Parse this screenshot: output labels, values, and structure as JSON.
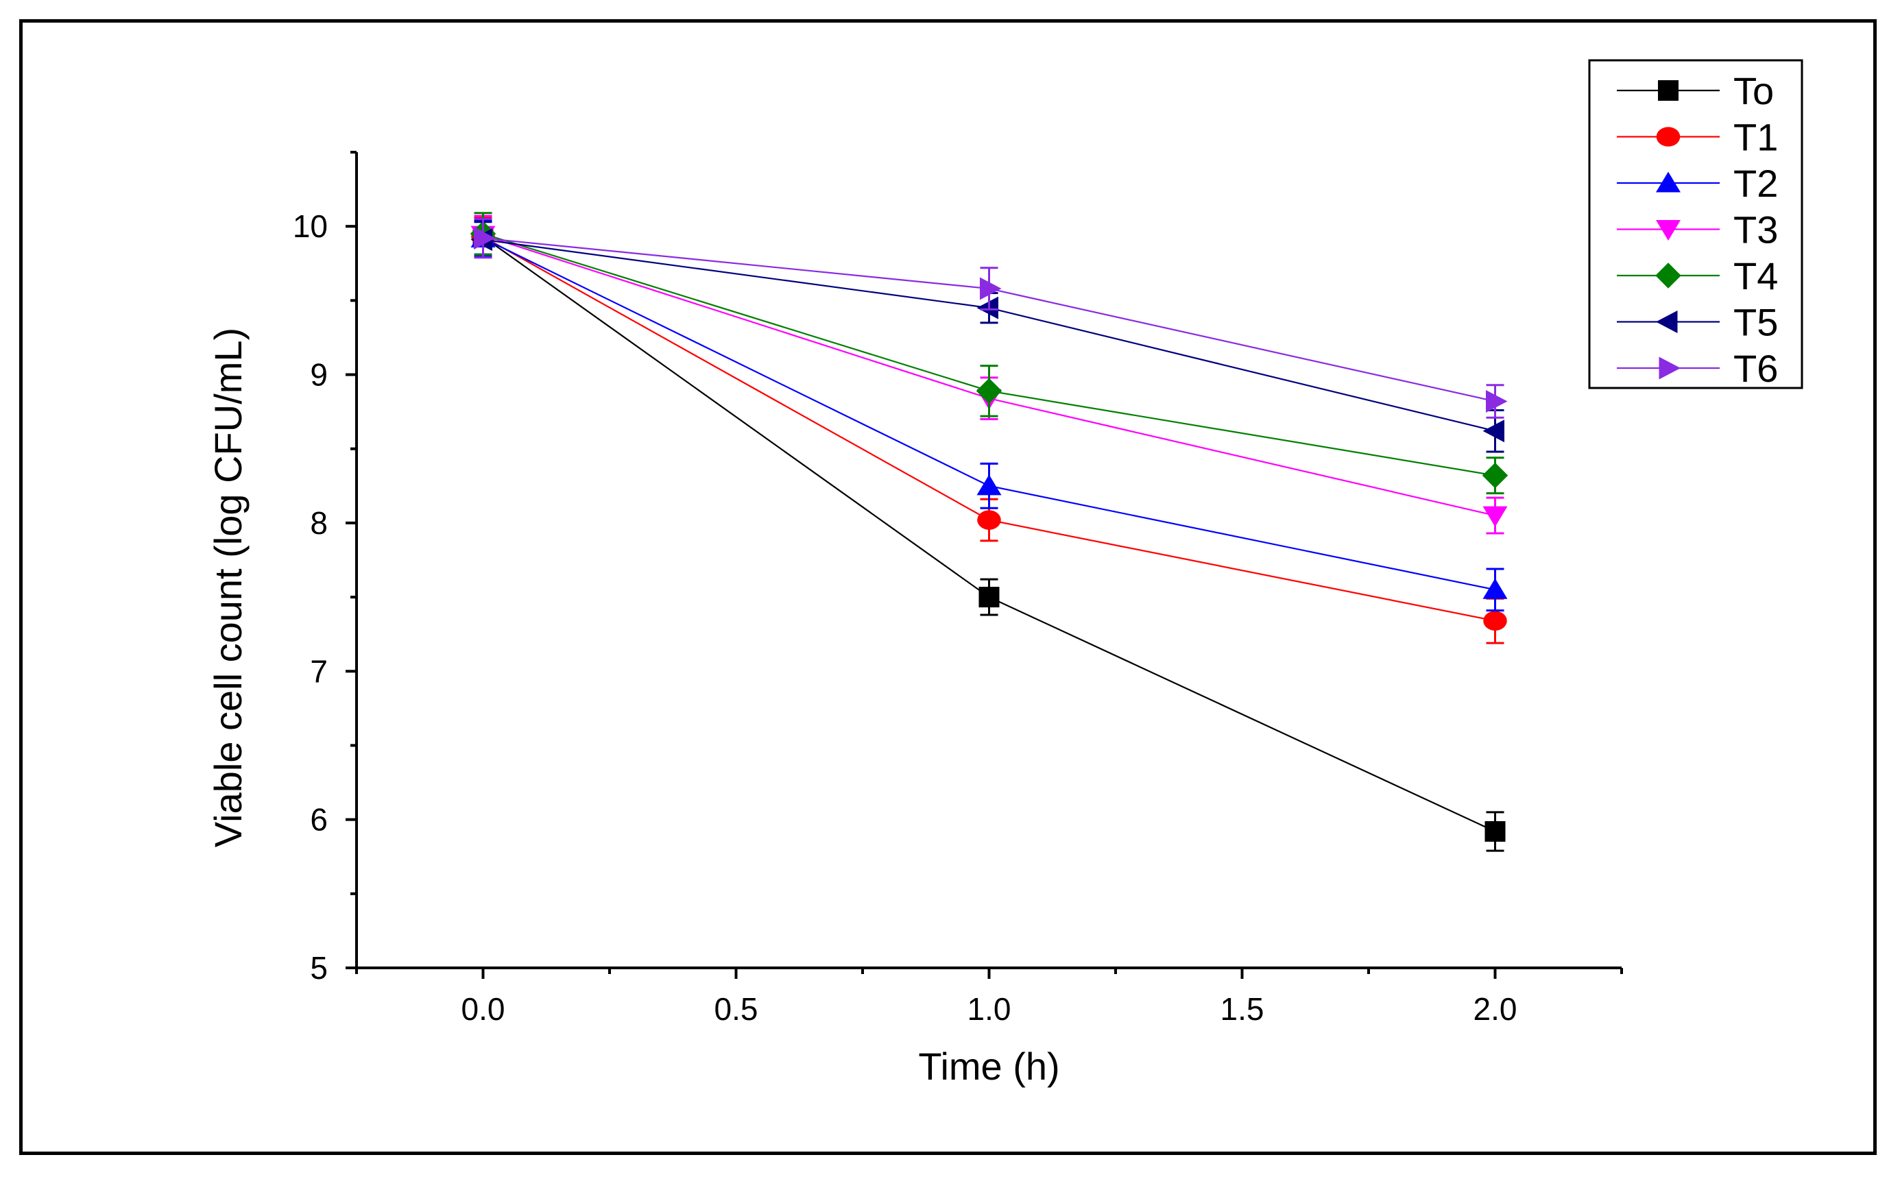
{
  "chart_data": {
    "type": "line",
    "title": "",
    "xlabel": "Time (h)",
    "ylabel": "Viable cell count (log CFU/mL)",
    "xlim": [
      -0.25,
      2.25
    ],
    "ylim": [
      5,
      10.5
    ],
    "xticks": [
      0.0,
      0.5,
      1.0,
      1.5,
      2.0
    ],
    "xtick_labels": [
      "0.0",
      "0.5",
      "1.0",
      "1.5",
      "2.0"
    ],
    "yticks": [
      5,
      6,
      7,
      8,
      9,
      10
    ],
    "ytick_labels": [
      "5",
      "6",
      "7",
      "8",
      "9",
      "10"
    ],
    "legend_position": "top-right",
    "series": [
      {
        "name": "To",
        "color": "#000000",
        "marker": "square",
        "x": [
          0,
          1,
          2
        ],
        "y": [
          9.93,
          7.5,
          5.92
        ],
        "err": [
          0.12,
          0.12,
          0.13
        ]
      },
      {
        "name": "T1",
        "color": "#ff0000",
        "marker": "circle",
        "x": [
          0,
          1,
          2
        ],
        "y": [
          9.93,
          8.02,
          7.34
        ],
        "err": [
          0.13,
          0.14,
          0.15
        ]
      },
      {
        "name": "T2",
        "color": "#0000ff",
        "marker": "triangle-up",
        "x": [
          0,
          1,
          2
        ],
        "y": [
          9.92,
          8.25,
          7.55
        ],
        "err": [
          0.12,
          0.15,
          0.14
        ]
      },
      {
        "name": "T3",
        "color": "#ff00ff",
        "marker": "triangle-down",
        "x": [
          0,
          1,
          2
        ],
        "y": [
          9.94,
          8.84,
          8.05
        ],
        "err": [
          0.13,
          0.14,
          0.12
        ]
      },
      {
        "name": "T4",
        "color": "#008000",
        "marker": "diamond",
        "x": [
          0,
          1,
          2
        ],
        "y": [
          9.95,
          8.89,
          8.32
        ],
        "err": [
          0.14,
          0.17,
          0.12
        ]
      },
      {
        "name": "T5",
        "color": "#000080",
        "marker": "triangle-left",
        "x": [
          0,
          1,
          2
        ],
        "y": [
          9.91,
          9.45,
          8.62
        ],
        "err": [
          0.12,
          0.1,
          0.14
        ]
      },
      {
        "name": "T6",
        "color": "#8a2be2",
        "marker": "triangle-right",
        "x": [
          0,
          1,
          2
        ],
        "y": [
          9.92,
          9.58,
          8.82
        ],
        "err": [
          0.13,
          0.14,
          0.11
        ]
      }
    ]
  }
}
